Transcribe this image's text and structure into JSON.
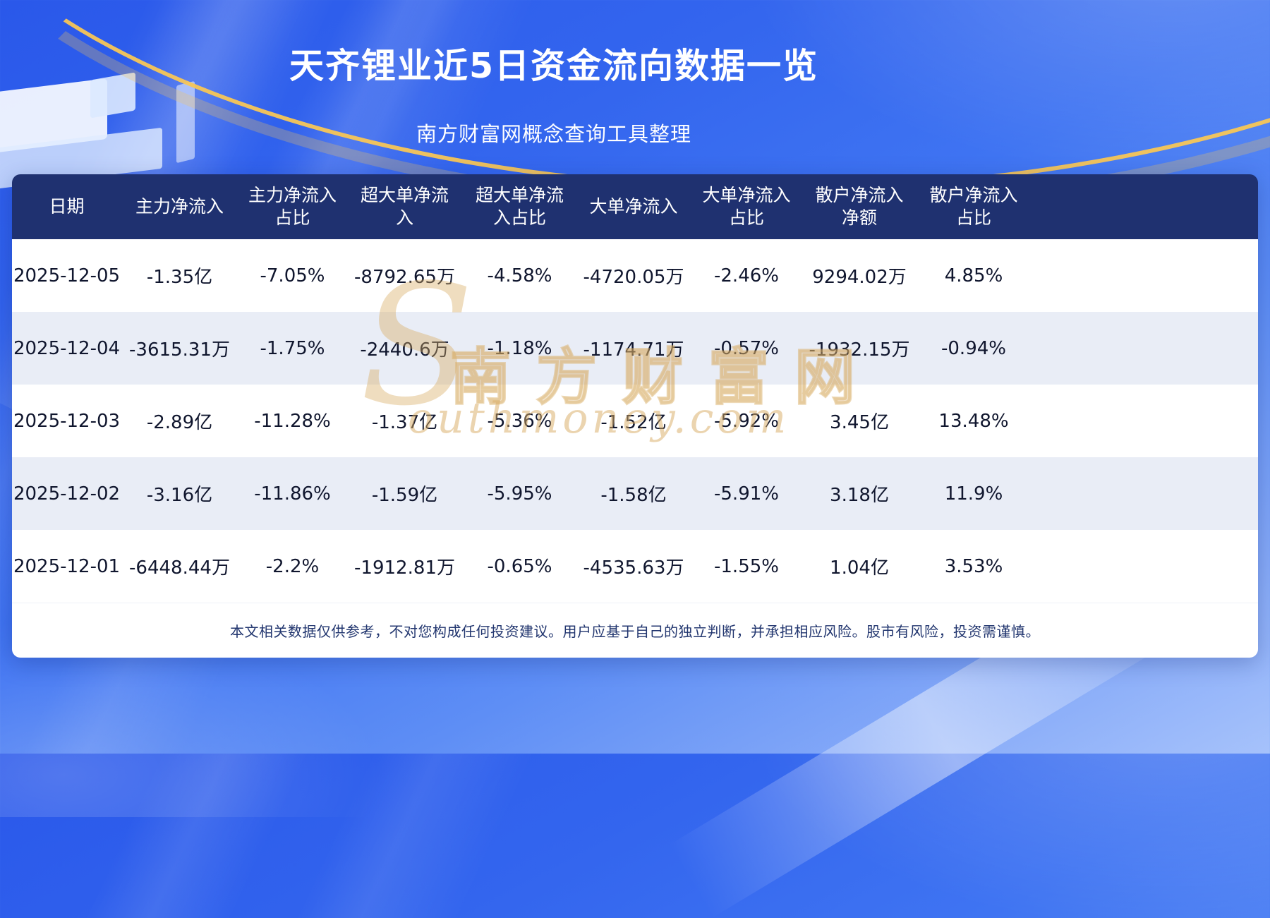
{
  "page": {
    "title": "天齐锂业近5日资金流向数据一览",
    "subtitle": "南方财富网概念查询工具整理",
    "disclaimer": "本文相关数据仅供参考，不对您构成任何投资建议。用户应基于自己的独立判断，并承担相应风险。股市有风险，投资需谨慎。"
  },
  "watermark": {
    "initial": "S",
    "cn": "南方财富网",
    "en": "outhmoney.com"
  },
  "colors": {
    "background_blue": "#3365ee",
    "header_bg": "#1f3170",
    "row_alt_bg": "#e9edf6",
    "accent_gold": "#f8c656",
    "body_text": "#10162e"
  },
  "table": {
    "header_lines": [
      "日期",
      "主力净流入",
      "主力净流入\n占比",
      "超大单净流\n入",
      "超大单净流\n入占比",
      "大单净流入",
      "大单净流入\n占比",
      "散户净流入\n净额",
      "散户净流入\n占比"
    ]
  },
  "chart_data": {
    "type": "table",
    "title": "天齐锂业近5日资金流向数据一览",
    "subtitle": "南方财富网概念查询工具整理",
    "columns": [
      "日期",
      "主力净流入",
      "主力净流入占比",
      "超大单净流入",
      "超大单净流入占比",
      "大单净流入",
      "大单净流入占比",
      "散户净流入净额",
      "散户净流入占比"
    ],
    "rows": [
      [
        "2025-12-05",
        "-1.35亿",
        "-7.05%",
        "-8792.65万",
        "-4.58%",
        "-4720.05万",
        "-2.46%",
        "9294.02万",
        "4.85%"
      ],
      [
        "2025-12-04",
        "-3615.31万",
        "-1.75%",
        "-2440.6万",
        "-1.18%",
        "-1174.71万",
        "-0.57%",
        "-1932.15万",
        "-0.94%"
      ],
      [
        "2025-12-03",
        "-2.89亿",
        "-11.28%",
        "-1.37亿",
        "-5.36%",
        "-1.52亿",
        "-5.92%",
        "3.45亿",
        "13.48%"
      ],
      [
        "2025-12-02",
        "-3.16亿",
        "-11.86%",
        "-1.59亿",
        "-5.95%",
        "-1.58亿",
        "-5.91%",
        "3.18亿",
        "11.9%"
      ],
      [
        "2025-12-01",
        "-6448.44万",
        "-2.2%",
        "-1912.81万",
        "-0.65%",
        "-4535.63万",
        "-1.55%",
        "1.04亿",
        "3.53%"
      ]
    ]
  }
}
